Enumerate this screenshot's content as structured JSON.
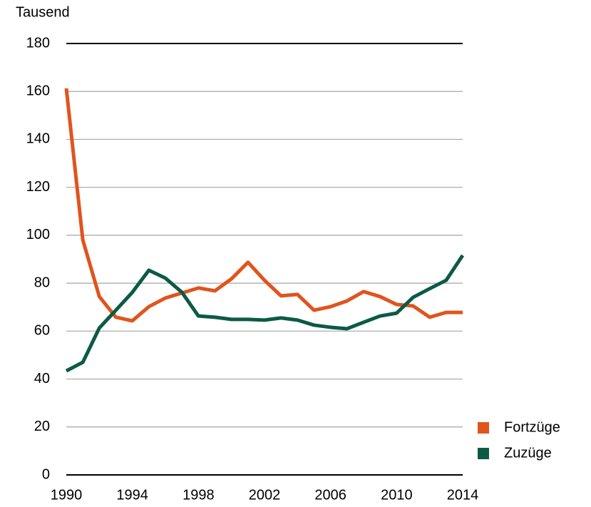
{
  "chart_data": {
    "type": "line",
    "y_label": "Tausend",
    "x": [
      1990,
      1991,
      1992,
      1993,
      1994,
      1995,
      1996,
      1997,
      1998,
      1999,
      2000,
      2001,
      2002,
      2003,
      2004,
      2005,
      2006,
      2007,
      2008,
      2009,
      2010,
      2011,
      2012,
      2013,
      2014
    ],
    "series": [
      {
        "name": "Fortzüge",
        "color": "#e0541e",
        "values": [
          161.3,
          98,
          74.4,
          65.8,
          64.3,
          70.2,
          73.8,
          75.9,
          78,
          76.8,
          81.8,
          88.7,
          81.2,
          74.7,
          75.3,
          68.7,
          70.2,
          72.6,
          76.5,
          74.4,
          71.1,
          70.5,
          65.8,
          67.8,
          67.8
        ]
      },
      {
        "name": "Zuzüge",
        "color": "#0c5a45",
        "values": [
          43.4,
          47,
          61.3,
          68.7,
          76.2,
          85.4,
          82.1,
          76.2,
          66.3,
          65.8,
          64.9,
          64.9,
          64.6,
          65.5,
          64.6,
          62.5,
          61.6,
          61,
          63.7,
          66.3,
          67.5,
          74.1,
          77.7,
          81.2,
          91.6
        ]
      }
    ],
    "xlim": [
      1990,
      2014
    ],
    "xticks": [
      1990,
      1994,
      1998,
      2002,
      2006,
      2010,
      2014
    ],
    "ylim": [
      0,
      180
    ],
    "yticks": [
      0,
      20,
      40,
      60,
      80,
      100,
      120,
      140,
      160,
      180
    ],
    "grid": true,
    "legend": "lower right"
  }
}
